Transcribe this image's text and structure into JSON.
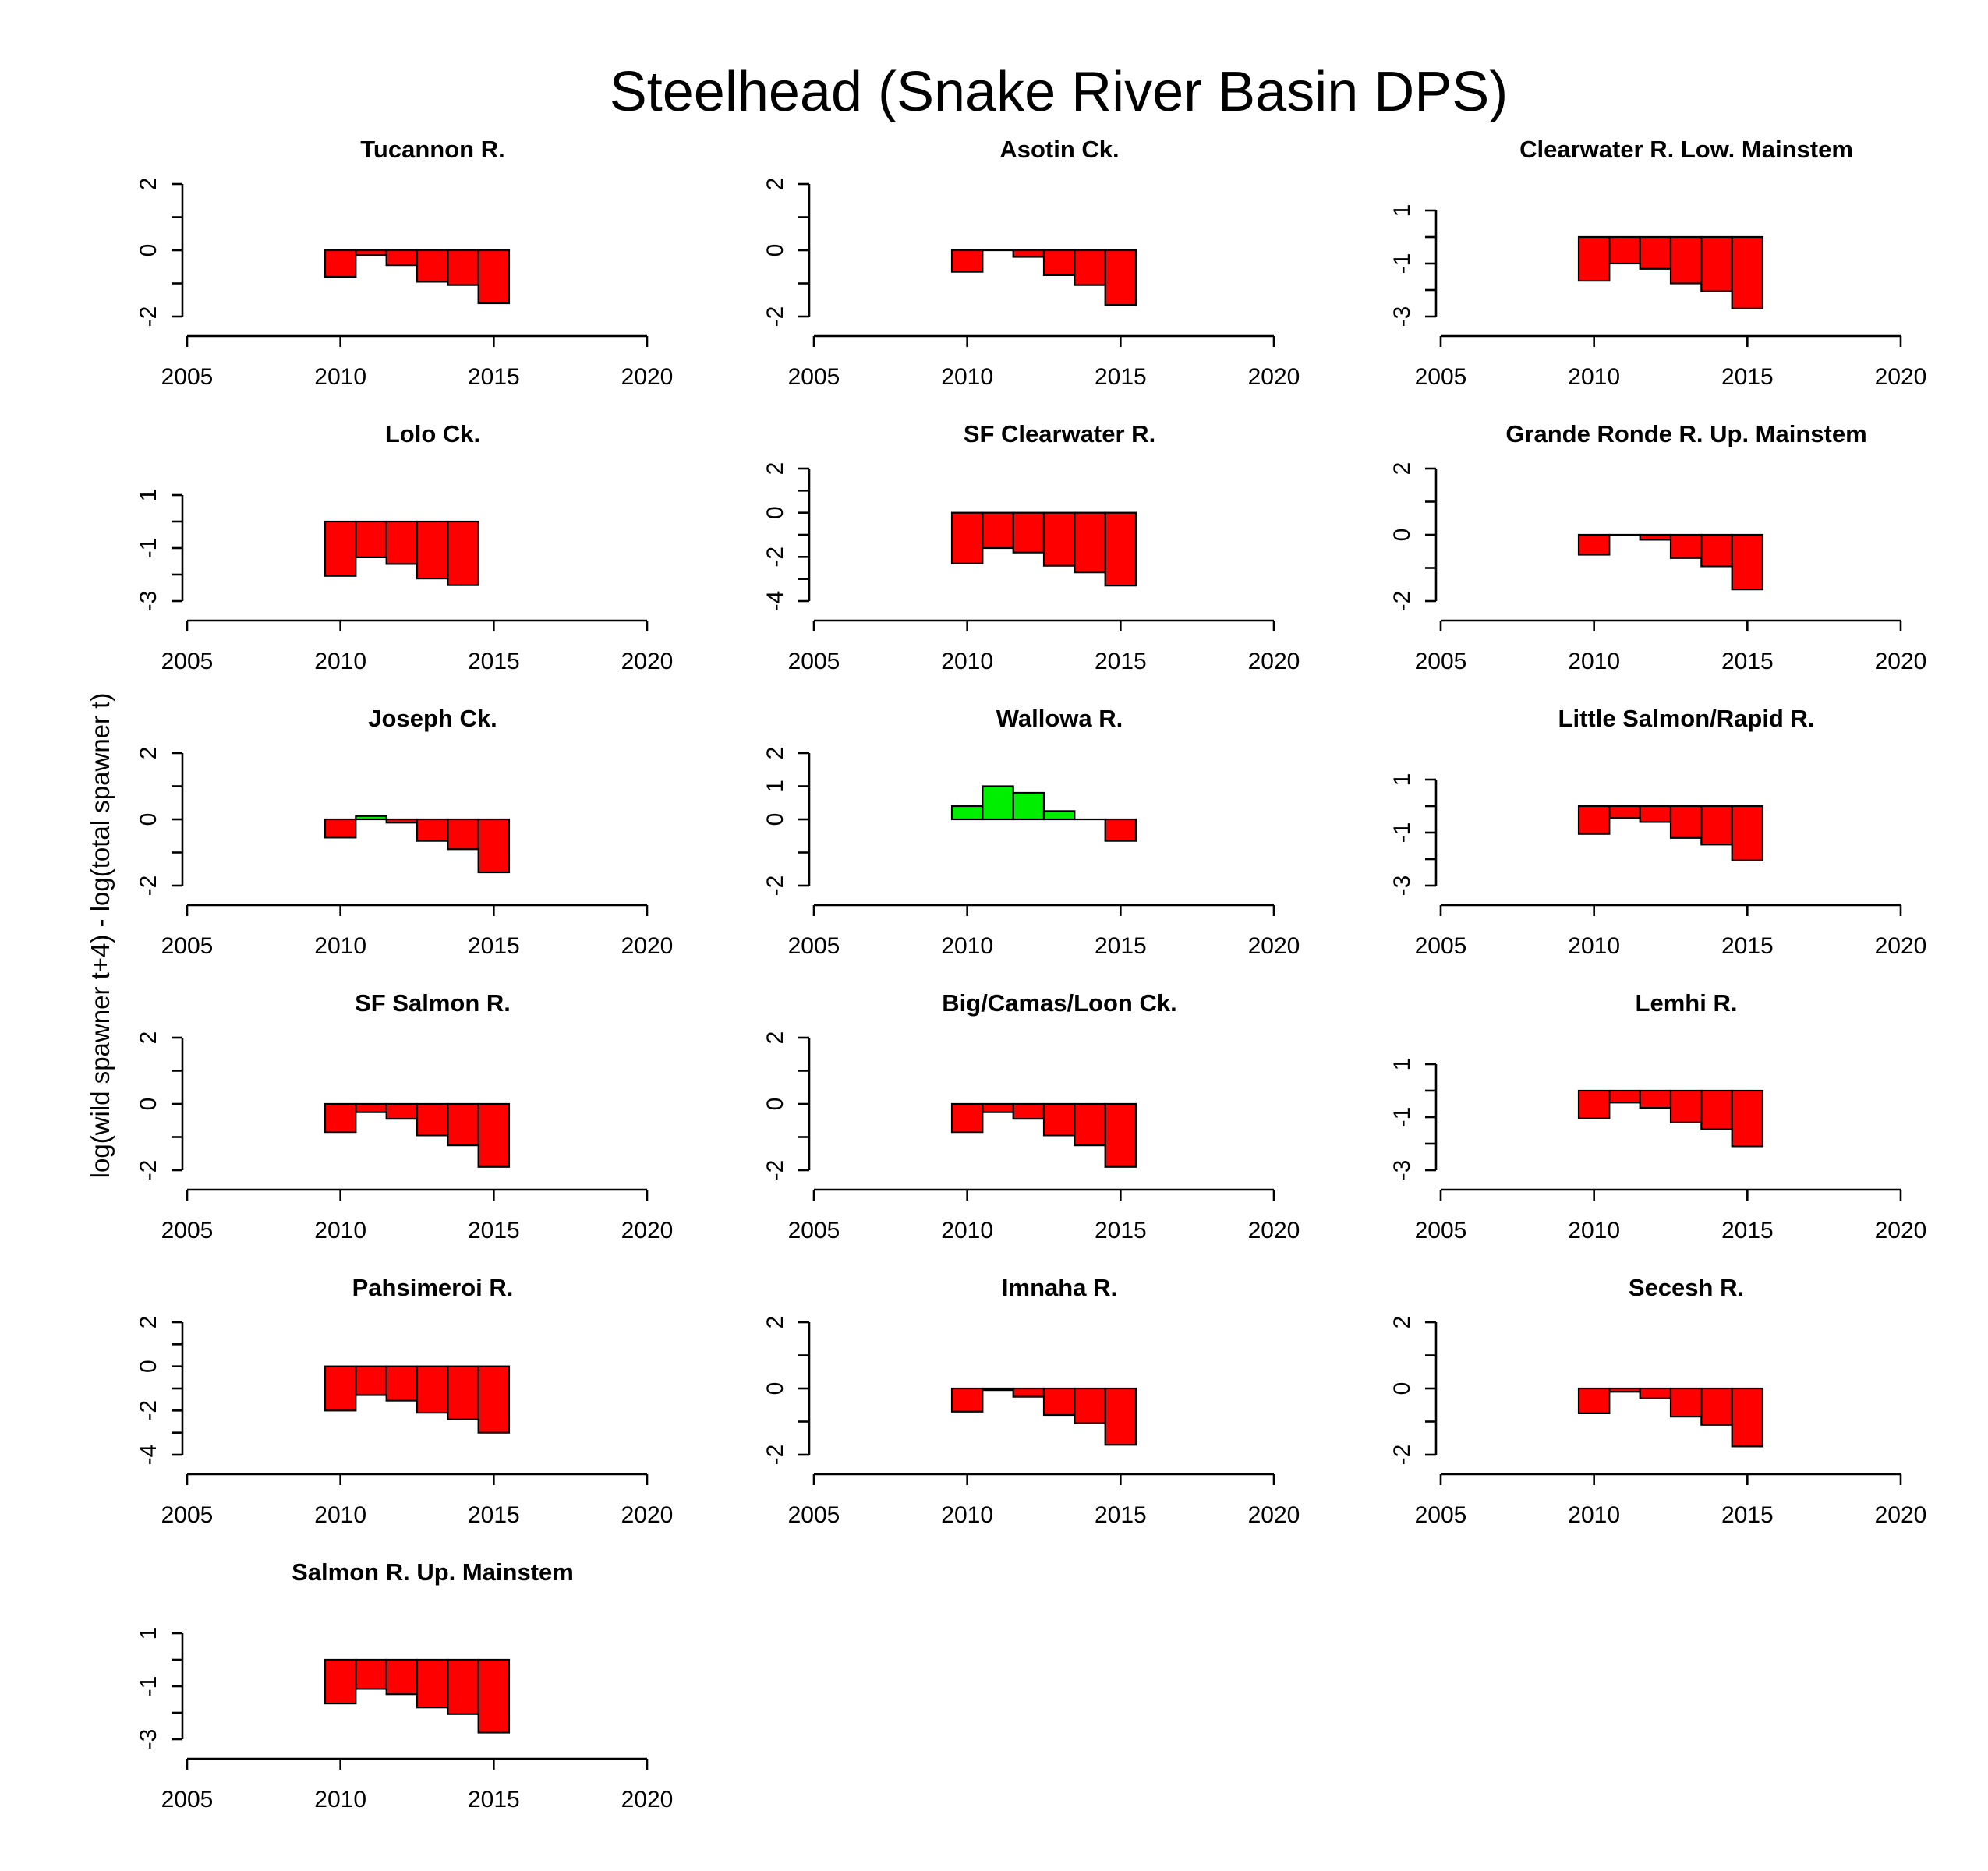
{
  "title": "Steelhead (Snake River Basin DPS)",
  "ylabel": "log(wild spawner t+4) - log(total spawner t)",
  "colors": {
    "negative": "#ff0000",
    "positive": "#00ee00",
    "outline": "#000000"
  },
  "chart_data": {
    "type": "bar",
    "x_ticks": [
      2005,
      2010,
      2015,
      2020
    ],
    "xlim": [
      2005,
      2020
    ],
    "panels": [
      {
        "name": "Tucannon R.",
        "ylim": [
          -2,
          2
        ],
        "y_ticks": [
          -2,
          -1,
          0,
          1,
          2
        ],
        "y_tick_labels": [
          -2,
          0,
          2
        ],
        "x": [
          2010,
          2011,
          2012,
          2013,
          2014,
          2015
        ],
        "values": [
          -0.8,
          -0.15,
          -0.45,
          -0.95,
          -1.05,
          -1.6
        ]
      },
      {
        "name": "Asotin Ck.",
        "ylim": [
          -2,
          2
        ],
        "y_ticks": [
          -2,
          -1,
          0,
          1,
          2
        ],
        "y_tick_labels": [
          -2,
          0,
          2
        ],
        "x": [
          2010,
          2011,
          2012,
          2013,
          2014,
          2015
        ],
        "values": [
          -0.65,
          0,
          -0.2,
          -0.75,
          -1.05,
          -1.65
        ]
      },
      {
        "name": "Clearwater R. Low. Mainstem",
        "ylim": [
          -3,
          2
        ],
        "y_ticks": [
          -3,
          -2,
          -1,
          0,
          1
        ],
        "y_tick_labels": [
          -3,
          -1,
          1
        ],
        "x": [
          2010,
          2011,
          2012,
          2013,
          2014,
          2015
        ],
        "values": [
          -1.65,
          -1.0,
          -1.2,
          -1.75,
          -2.05,
          -2.7
        ]
      },
      {
        "name": "Lolo Ck.",
        "ylim": [
          -3,
          2
        ],
        "y_ticks": [
          -3,
          -2,
          -1,
          0,
          1
        ],
        "y_tick_labels": [
          -3,
          -1,
          1
        ],
        "x": [
          2010,
          2011,
          2012,
          2013,
          2014
        ],
        "values": [
          -2.05,
          -1.35,
          -1.6,
          -2.15,
          -2.4
        ]
      },
      {
        "name": "SF Clearwater R.",
        "ylim": [
          -4,
          2
        ],
        "y_ticks": [
          -4,
          -3,
          -2,
          -1,
          0,
          1,
          2
        ],
        "y_tick_labels": [
          -4,
          -2,
          0,
          2
        ],
        "x": [
          2010,
          2011,
          2012,
          2013,
          2014,
          2015
        ],
        "values": [
          -2.3,
          -1.6,
          -1.8,
          -2.4,
          -2.7,
          -3.3
        ]
      },
      {
        "name": "Grande Ronde R. Up. Mainstem",
        "ylim": [
          -2,
          2
        ],
        "y_ticks": [
          -2,
          -1,
          0,
          1,
          2
        ],
        "y_tick_labels": [
          -2,
          0,
          2
        ],
        "x": [
          2010,
          2011,
          2012,
          2013,
          2014,
          2015
        ],
        "values": [
          -0.6,
          0,
          -0.15,
          -0.7,
          -0.95,
          -1.65
        ]
      },
      {
        "name": "Joseph Ck.",
        "ylim": [
          -2,
          2
        ],
        "y_ticks": [
          -2,
          -1,
          0,
          1,
          2
        ],
        "y_tick_labels": [
          -2,
          0,
          2
        ],
        "x": [
          2010,
          2011,
          2012,
          2013,
          2014,
          2015
        ],
        "values": [
          -0.55,
          0.1,
          -0.1,
          -0.65,
          -0.9,
          -1.6
        ]
      },
      {
        "name": "Wallowa R.",
        "ylim": [
          -2,
          2
        ],
        "y_ticks": [
          -2,
          -1,
          0,
          1,
          2
        ],
        "y_tick_labels": [
          -2,
          0,
          1,
          2
        ],
        "x": [
          2010,
          2011,
          2012,
          2013,
          2014,
          2015
        ],
        "values": [
          0.4,
          1.0,
          0.8,
          0.25,
          0,
          -0.65
        ]
      },
      {
        "name": "Little Salmon/Rapid R.",
        "ylim": [
          -3,
          2
        ],
        "y_ticks": [
          -3,
          -2,
          -1,
          0,
          1
        ],
        "y_tick_labels": [
          -3,
          -1,
          1
        ],
        "x": [
          2010,
          2011,
          2012,
          2013,
          2014,
          2015
        ],
        "values": [
          -1.05,
          -0.45,
          -0.6,
          -1.2,
          -1.45,
          -2.05
        ]
      },
      {
        "name": "SF Salmon R.",
        "ylim": [
          -2,
          2
        ],
        "y_ticks": [
          -2,
          -1,
          0,
          1,
          2
        ],
        "y_tick_labels": [
          -2,
          0,
          2
        ],
        "x": [
          2010,
          2011,
          2012,
          2013,
          2014,
          2015
        ],
        "values": [
          -0.85,
          -0.25,
          -0.45,
          -0.95,
          -1.25,
          -1.9
        ]
      },
      {
        "name": "Big/Camas/Loon Ck.",
        "ylim": [
          -2,
          2
        ],
        "y_ticks": [
          -2,
          -1,
          0,
          1,
          2
        ],
        "y_tick_labels": [
          -2,
          0,
          2
        ],
        "x": [
          2010,
          2011,
          2012,
          2013,
          2014,
          2015
        ],
        "values": [
          -0.85,
          -0.25,
          -0.45,
          -0.95,
          -1.25,
          -1.9
        ]
      },
      {
        "name": "Lemhi R.",
        "ylim": [
          -3,
          2
        ],
        "y_ticks": [
          -3,
          -2,
          -1,
          0,
          1
        ],
        "y_tick_labels": [
          -3,
          -1,
          1
        ],
        "x": [
          2010,
          2011,
          2012,
          2013,
          2014,
          2015
        ],
        "values": [
          -1.05,
          -0.45,
          -0.65,
          -1.2,
          -1.45,
          -2.1
        ]
      },
      {
        "name": "Pahsimeroi R.",
        "ylim": [
          -4,
          2
        ],
        "y_ticks": [
          -4,
          -3,
          -2,
          -1,
          0,
          1,
          2
        ],
        "y_tick_labels": [
          -4,
          -2,
          0,
          2
        ],
        "x": [
          2010,
          2011,
          2012,
          2013,
          2014,
          2015
        ],
        "values": [
          -2.0,
          -1.3,
          -1.55,
          -2.1,
          -2.4,
          -3.0
        ]
      },
      {
        "name": "Imnaha R.",
        "ylim": [
          -2,
          2
        ],
        "y_ticks": [
          -2,
          -1,
          0,
          1,
          2
        ],
        "y_tick_labels": [
          -2,
          0,
          2
        ],
        "x": [
          2010,
          2011,
          2012,
          2013,
          2014,
          2015
        ],
        "values": [
          -0.7,
          -0.05,
          -0.25,
          -0.8,
          -1.05,
          -1.7
        ]
      },
      {
        "name": "Secesh R.",
        "ylim": [
          -2,
          2
        ],
        "y_ticks": [
          -2,
          -1,
          0,
          1,
          2
        ],
        "y_tick_labels": [
          -2,
          0,
          2
        ],
        "x": [
          2010,
          2011,
          2012,
          2013,
          2014,
          2015
        ],
        "values": [
          -0.75,
          -0.1,
          -0.3,
          -0.85,
          -1.1,
          -1.75
        ]
      },
      {
        "name": "Salmon R. Up. Mainstem",
        "ylim": [
          -3,
          2
        ],
        "y_ticks": [
          -3,
          -2,
          -1,
          0,
          1
        ],
        "y_tick_labels": [
          -3,
          -1,
          1
        ],
        "x": [
          2010,
          2011,
          2012,
          2013,
          2014,
          2015
        ],
        "values": [
          -1.65,
          -1.1,
          -1.3,
          -1.8,
          -2.05,
          -2.75
        ]
      }
    ]
  }
}
